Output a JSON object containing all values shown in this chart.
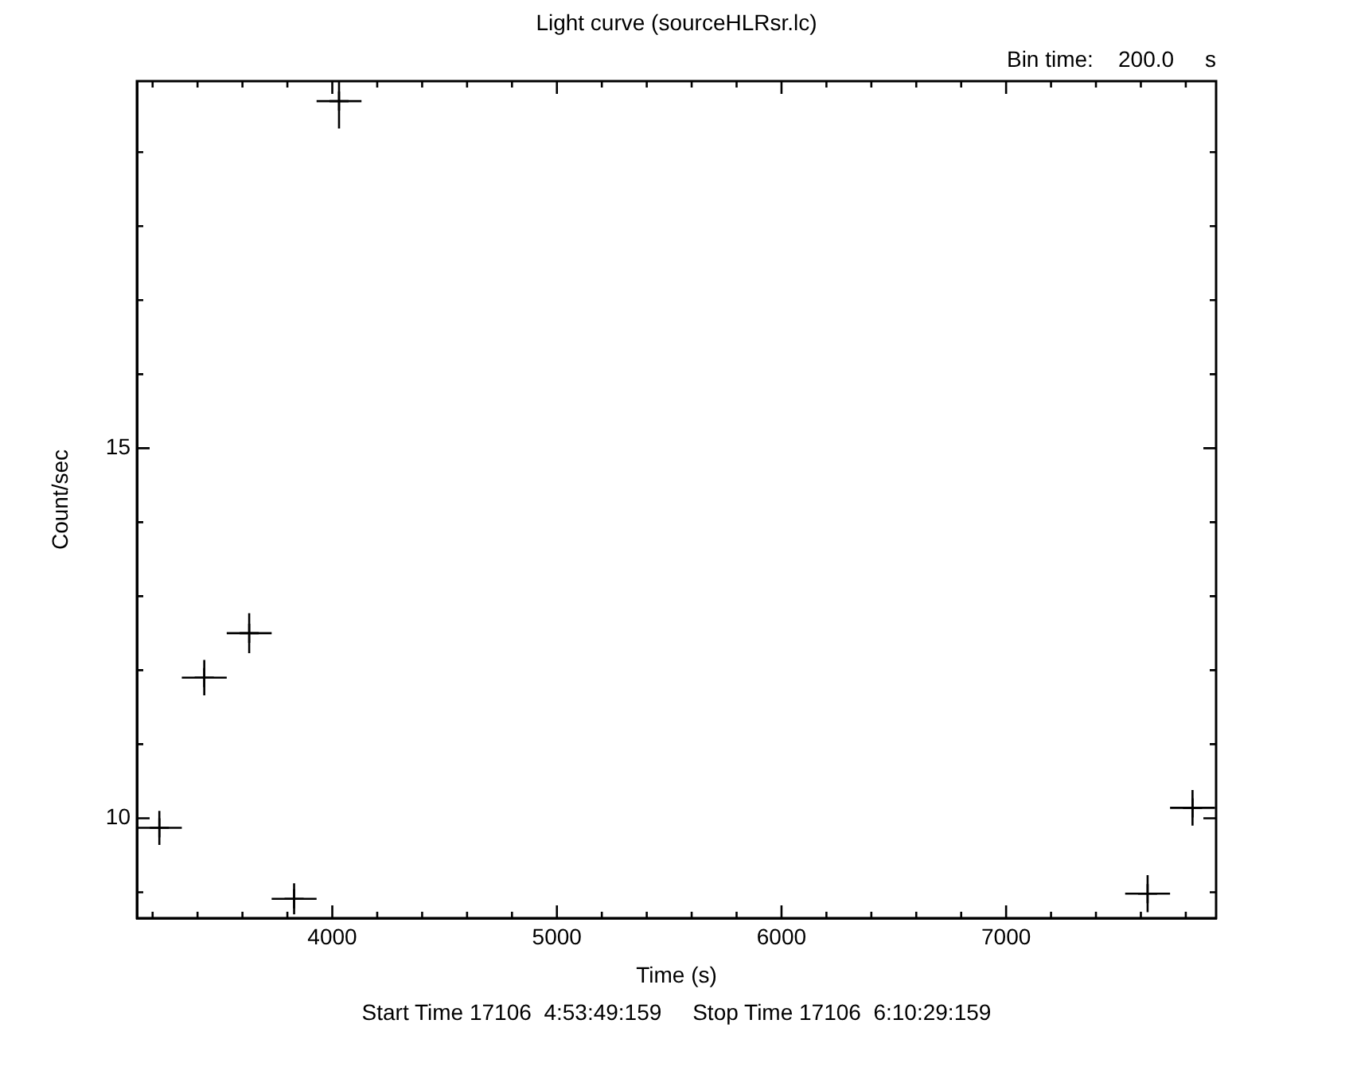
{
  "chart_data": {
    "type": "scatter",
    "title": "Light curve (sourceHLRsr.lc)",
    "xlabel": "Time (s)",
    "ylabel": "Count/sec",
    "annotations": [
      "Bin time:    200.0     s",
      "Start Time 17106  4:53:49:159     Stop Time 17106  6:10:29:159"
    ],
    "x": [
      3230,
      3430,
      3630,
      3830,
      4030,
      7630,
      7830
    ],
    "values": [
      9.87,
      11.9,
      12.5,
      8.91,
      19.69,
      8.98,
      10.14
    ],
    "errors": [
      0.23,
      0.24,
      0.27,
      0.21,
      0.37,
      0.25,
      0.24
    ],
    "xerrors": [
      100,
      100,
      100,
      100,
      100,
      100,
      100
    ],
    "color": "#000000",
    "marker": "cross",
    "grid": false,
    "legend": false,
    "xlim": [
      3130,
      7935
    ],
    "ylim": [
      8.65,
      19.96
    ],
    "xticks": [
      {
        "value": 3200,
        "label": null
      },
      {
        "value": 3400,
        "label": null
      },
      {
        "value": 3600,
        "label": null
      },
      {
        "value": 3800,
        "label": null
      },
      4000,
      {
        "value": 4200,
        "label": null
      },
      {
        "value": 4400,
        "label": null
      },
      {
        "value": 4600,
        "label": null
      },
      {
        "value": 4800,
        "label": null
      },
      5000,
      {
        "value": 5200,
        "label": null
      },
      {
        "value": 5400,
        "label": null
      },
      {
        "value": 5600,
        "label": null
      },
      {
        "value": 5800,
        "label": null
      },
      6000,
      {
        "value": 6200,
        "label": null
      },
      {
        "value": 6400,
        "label": null
      },
      {
        "value": 6600,
        "label": null
      },
      {
        "value": 6800,
        "label": null
      },
      7000,
      {
        "value": 7200,
        "label": null
      },
      {
        "value": 7400,
        "label": null
      },
      {
        "value": 7600,
        "label": null
      },
      {
        "value": 7800,
        "label": null
      }
    ],
    "yticks": [
      {
        "value": 9,
        "label": null
      },
      10,
      {
        "value": 11,
        "label": null
      },
      {
        "value": 12,
        "label": null
      },
      {
        "value": 13,
        "label": null
      },
      {
        "value": 14,
        "label": null
      },
      15,
      {
        "value": 16,
        "label": null
      },
      {
        "value": 17,
        "label": null
      },
      {
        "value": 18,
        "label": null
      },
      {
        "value": 19,
        "label": null
      }
    ]
  }
}
